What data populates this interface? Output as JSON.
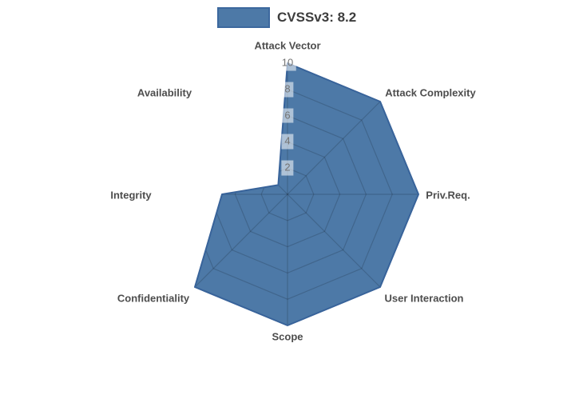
{
  "legend": {
    "label": "CVSSv3: 8.2"
  },
  "chart_data": {
    "type": "radar",
    "title": "CVSSv3: 8.2",
    "categories": [
      "Attack Vector",
      "Attack Complexity",
      "Priv.Req.",
      "User Interaction",
      "Scope",
      "Confidentiality",
      "Integrity",
      "Availability"
    ],
    "series": [
      {
        "name": "CVSSv3: 8.2",
        "values": [
          10,
          10,
          10,
          10,
          10,
          10,
          5,
          1
        ]
      }
    ],
    "ticks": [
      2,
      4,
      6,
      8,
      10
    ],
    "rlim": [
      0,
      10
    ],
    "grid": "web grid (rings + spokes) visible only inside filled polygon",
    "legend_position": "top-center"
  },
  "colors": {
    "fill": "#4d79a7",
    "stroke": "#38639a",
    "grid_line": "rgba(0,0,0,0.16)",
    "axis_label": "#4d4d4d",
    "tick_label": "#747474",
    "tick_bg": "rgba(255,255,255,0.55)",
    "legend_text": "#3d3d3d",
    "background": "#ffffff"
  }
}
